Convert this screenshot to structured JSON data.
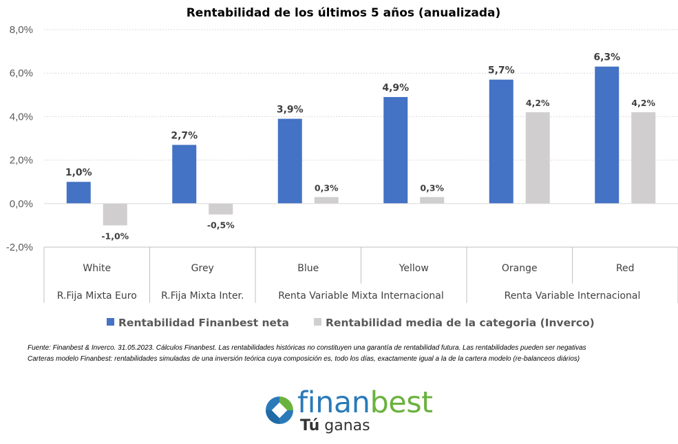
{
  "chart_data": {
    "type": "bar",
    "title": "Rentabilidad de los últimos 5 años (anualizada)",
    "categories": [
      "White",
      "Grey",
      "Blue",
      "Yellow",
      "Orange",
      "Red"
    ],
    "groups": [
      {
        "label": "R.Fija Mixta Euro",
        "categories": [
          "White"
        ]
      },
      {
        "label": "R.Fija Mixta Inter.",
        "categories": [
          "Grey"
        ]
      },
      {
        "label": "Renta Variable Mixta Internacional",
        "categories": [
          "Blue",
          "Yellow"
        ]
      },
      {
        "label": "Renta Variable Internacional",
        "categories": [
          "Orange",
          "Red"
        ]
      }
    ],
    "series": [
      {
        "name": "Rentabilidad Finanbest neta",
        "color": "#4472c4",
        "values": [
          1.0,
          2.7,
          3.9,
          4.9,
          5.7,
          6.3
        ],
        "labels": [
          "1,0%",
          "2,7%",
          "3,9%",
          "4,9%",
          "5,7%",
          "6,3%"
        ]
      },
      {
        "name": "Rentabilidad media de la categoria (Inverco)",
        "color": "#d0cece",
        "values": [
          -1.0,
          -0.5,
          0.3,
          0.3,
          4.2,
          4.2
        ],
        "labels": [
          "-1,0%",
          "-0,5%",
          "0,3%",
          "0,3%",
          "4,2%",
          "4,2%"
        ]
      }
    ],
    "ylim": [
      -2.0,
      8.0
    ],
    "yticks": [
      -2.0,
      0.0,
      2.0,
      4.0,
      6.0,
      8.0
    ],
    "ytick_labels": [
      "-2,0%",
      "0,0%",
      "2,0%",
      "4,0%",
      "6,0%",
      "8,0%"
    ],
    "grid": true,
    "legend_position": "bottom"
  },
  "footnotes": [
    "Fuente: Finanbest & Inverco. 31.05.2023. Cálculos Finanbest. Las rentabilidades históricas no constituyen una garantía de rentabilidad futura. Las rentabilidades pueden ser negativas",
    "Carteras modelo Finanbest: rentabilidades simuladas de una inversión teórica cuya composición es, todo los días, exactamente igual a la de la cartera modelo (re-balanceos diários)"
  ],
  "logo": {
    "brand_part1": "finan",
    "brand_part2": "best",
    "tagline_bold": "Tú",
    "tagline_rest": " ganas",
    "colors": {
      "blue": "#2a7ab8",
      "green": "#6ab23e"
    }
  }
}
